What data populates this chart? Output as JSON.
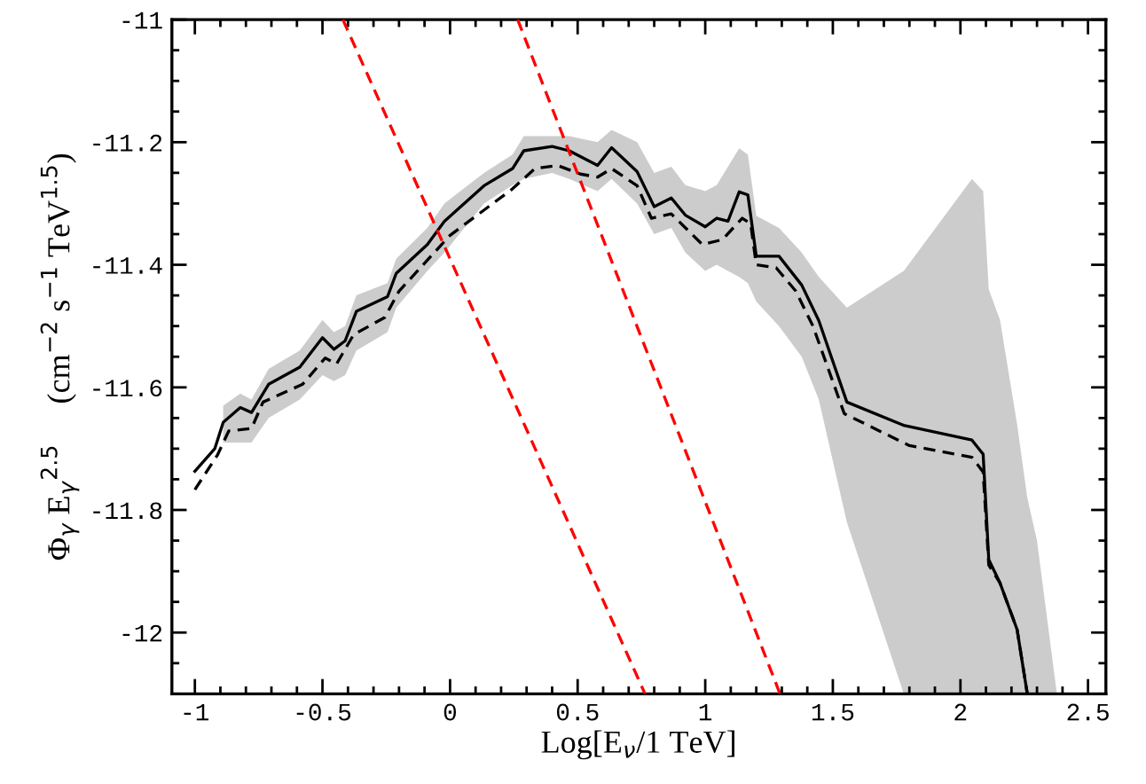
{
  "chart_data": {
    "type": "line",
    "xlabel": "Log[E$_{ν}$/1 TeV]",
    "ylabel": "Φ$_{γ}$ E$_{γ}$$^{2.5}$     (cm$^{−2}$ s$^{−1}$ TeV$^{1.5}$)",
    "xlim": [
      -1.09,
      2.57
    ],
    "xticks": [
      -1,
      -0.5,
      0,
      0.5,
      1,
      1.5,
      2,
      2.5
    ],
    "ylim": [
      -12.1,
      -11.0
    ],
    "yticks": [
      -12,
      -11.8,
      -11.6,
      -11.4,
      -11.2,
      -11
    ],
    "grid": false,
    "marker": "none",
    "series": [
      {
        "color": "#000000",
        "line_style": "solid",
        "x": [
          -1.0,
          -0.922,
          -0.889,
          -0.822,
          -0.778,
          -0.711,
          -0.589,
          -0.5,
          -0.455,
          -0.411,
          -0.367,
          -0.245,
          -0.211,
          -0.089,
          -0.022,
          0.133,
          0.245,
          0.289,
          0.4,
          0.467,
          0.578,
          0.633,
          0.733,
          0.8,
          0.867,
          0.922,
          1.0,
          1.045,
          1.089,
          1.133,
          1.167,
          1.2,
          1.289,
          1.378,
          1.445,
          1.555,
          1.778,
          2.045,
          2.089,
          2.111,
          2.155,
          2.222,
          2.262,
          2.3,
          2.378
        ],
        "values": [
          -11.737,
          -11.7,
          -11.657,
          -11.633,
          -11.641,
          -11.595,
          -11.567,
          -11.519,
          -11.538,
          -11.524,
          -11.476,
          -11.452,
          -11.414,
          -11.367,
          -11.329,
          -11.271,
          -11.243,
          -11.214,
          -11.207,
          -11.214,
          -11.238,
          -11.209,
          -11.248,
          -11.305,
          -11.291,
          -11.319,
          -11.338,
          -11.324,
          -11.329,
          -11.281,
          -11.286,
          -11.386,
          -11.386,
          -11.433,
          -11.491,
          -11.624,
          -11.662,
          -11.686,
          -11.709,
          -11.881,
          -11.919,
          -11.995,
          -12.1,
          null,
          null
        ],
        "upper": [
          null,
          null,
          -11.63,
          -11.61,
          -11.62,
          -11.57,
          -11.54,
          -11.49,
          -11.51,
          -11.5,
          -11.45,
          -11.43,
          -11.39,
          -11.34,
          -11.3,
          -11.25,
          -11.22,
          -11.19,
          -11.19,
          -11.19,
          -11.2,
          -11.18,
          -11.2,
          -11.25,
          -11.24,
          -11.27,
          -11.28,
          -11.27,
          -11.24,
          -11.21,
          -11.22,
          -11.32,
          -11.34,
          -11.38,
          -11.42,
          -11.47,
          -11.41,
          -11.26,
          -11.28,
          -11.44,
          -11.49,
          -11.66,
          -11.78,
          -11.85,
          -12.1
        ],
        "lower": [
          null,
          null,
          -11.69,
          -11.69,
          -11.69,
          -11.65,
          -11.62,
          -11.58,
          -11.59,
          -11.58,
          -11.54,
          -11.51,
          -11.47,
          -11.41,
          -11.38,
          -11.3,
          -11.27,
          -11.26,
          -11.25,
          -11.26,
          -11.28,
          -11.26,
          -11.3,
          -11.35,
          -11.34,
          -11.38,
          -11.41,
          -11.4,
          -11.41,
          -11.42,
          -11.43,
          -11.46,
          -11.5,
          -11.55,
          -11.62,
          -11.82,
          -12.1,
          -12.1,
          -12.1,
          -12.1,
          -12.1,
          -12.1,
          -12.1,
          -12.1,
          -12.1
        ]
      },
      {
        "color": "#000000",
        "line_style": "dashed",
        "x": [
          -1.0,
          -0.911,
          -0.867,
          -0.778,
          -0.733,
          -0.578,
          -0.489,
          -0.445,
          -0.378,
          -0.256,
          -0.2,
          0.0,
          0.245,
          0.333,
          0.422,
          0.511,
          0.578,
          0.633,
          0.733,
          0.789,
          0.867,
          0.989,
          1.067,
          1.145,
          1.178,
          1.2,
          1.278,
          1.355,
          1.422,
          1.545,
          1.8,
          2.045,
          2.089,
          2.111,
          2.155,
          2.222,
          2.262
        ],
        "values": [
          -11.767,
          -11.71,
          -11.671,
          -11.667,
          -11.624,
          -11.595,
          -11.552,
          -11.562,
          -11.514,
          -11.486,
          -11.443,
          -11.352,
          -11.276,
          -11.243,
          -11.238,
          -11.252,
          -11.257,
          -11.243,
          -11.271,
          -11.324,
          -11.317,
          -11.367,
          -11.359,
          -11.324,
          -11.333,
          -11.4,
          -11.405,
          -11.443,
          -11.5,
          -11.643,
          -11.695,
          -11.714,
          -11.738,
          -11.89,
          -11.919,
          -11.995,
          -12.1
        ]
      },
      {
        "color": "#ff0000",
        "line_style": "dashed",
        "x": [
          -0.42,
          0.764
        ],
        "values": [
          -11.0,
          -12.1
        ]
      },
      {
        "color": "#ff0000",
        "line_style": "dashed",
        "x": [
          0.265,
          1.293
        ],
        "values": [
          -11.0,
          -12.1
        ]
      }
    ]
  }
}
